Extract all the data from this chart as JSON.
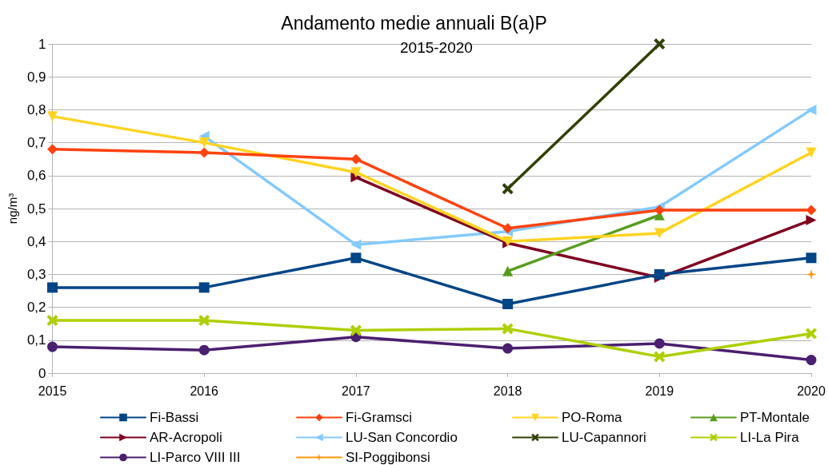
{
  "chart_data": {
    "type": "line",
    "title": "Andamento medie annuali B(a)P",
    "subtitle": "2015-2020",
    "ylabel": "ng/m³",
    "categories": [
      "2015",
      "2016",
      "2017",
      "2018",
      "2019",
      "2020"
    ],
    "ylim": [
      0,
      1
    ],
    "yticks": [
      {
        "value": 0,
        "label": "0"
      },
      {
        "value": 0.1,
        "label": "0,1"
      },
      {
        "value": 0.2,
        "label": "0,2"
      },
      {
        "value": 0.3,
        "label": "0,3"
      },
      {
        "value": 0.4,
        "label": "0,4"
      },
      {
        "value": 0.5,
        "label": "0,5"
      },
      {
        "value": 0.6,
        "label": "0,6"
      },
      {
        "value": 0.7,
        "label": "0,7"
      },
      {
        "value": 0.8,
        "label": "0,8"
      },
      {
        "value": 0.9,
        "label": "0,9"
      },
      {
        "value": 1,
        "label": "1"
      }
    ],
    "grid": "y",
    "legend": "bottom",
    "line_style": "solid",
    "series": [
      {
        "name": "Fi-Bassi",
        "color": "#004586",
        "marker": "square",
        "values": [
          0.26,
          0.26,
          0.35,
          0.21,
          0.3,
          0.35
        ]
      },
      {
        "name": "Fi-Gramsci",
        "color": "#ff420e",
        "marker": "diamond",
        "values": [
          0.68,
          0.67,
          0.65,
          0.44,
          0.495,
          0.495
        ]
      },
      {
        "name": "PO-Roma",
        "color": "#ffd320",
        "marker": "triangle",
        "values": [
          0.78,
          0.7,
          0.61,
          0.4,
          0.425,
          0.67
        ]
      },
      {
        "name": "PT-Montale",
        "color": "#579d1c",
        "marker": "triangle",
        "values": [
          null,
          null,
          null,
          0.31,
          0.48,
          null
        ]
      },
      {
        "name": "AR-Acropoli",
        "color": "#7e0021",
        "marker": "triangle",
        "values": [
          null,
          null,
          0.595,
          0.395,
          0.29,
          0.465
        ]
      },
      {
        "name": "LU-San Concordio",
        "color": "#83caff",
        "marker": "triangle",
        "values": [
          null,
          0.72,
          0.39,
          0.43,
          0.505,
          0.8
        ]
      },
      {
        "name": "LU-Capannori",
        "color": "#314004",
        "marker": "cross",
        "values": [
          null,
          null,
          null,
          0.56,
          1,
          null
        ]
      },
      {
        "name": "LI-La Pira",
        "color": "#aecf00",
        "marker": "cross",
        "values": [
          0.16,
          0.16,
          0.13,
          0.135,
          0.05,
          0.12
        ]
      },
      {
        "name": "LI-Parco VIII III",
        "color": "#4b1f6f",
        "marker": "circle",
        "values": [
          0.08,
          0.07,
          0.11,
          0.075,
          0.09,
          0.04
        ]
      },
      {
        "name": "SI-Poggibonsi",
        "color": "#ff950e",
        "marker": "star",
        "values": [
          null,
          null,
          null,
          null,
          null,
          0.3
        ]
      }
    ]
  }
}
